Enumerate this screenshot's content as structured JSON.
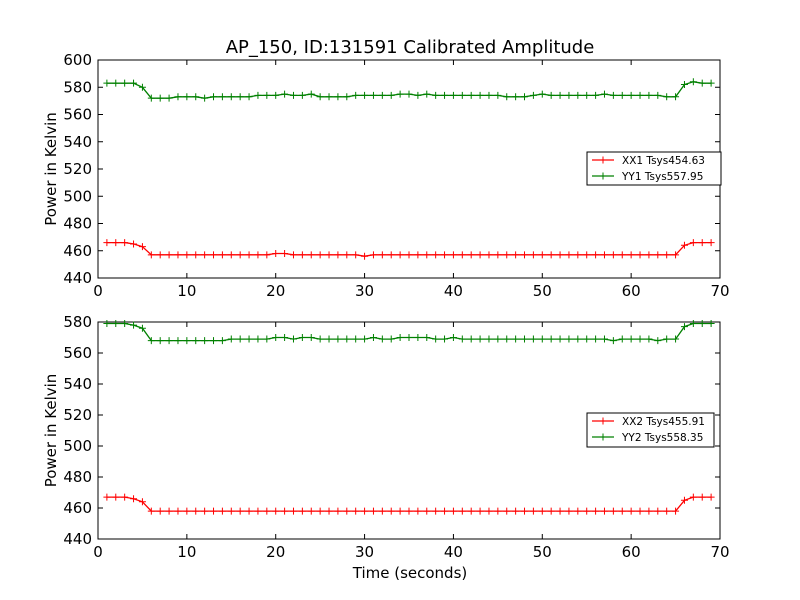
{
  "figure": {
    "title": "AP_150, ID:131591 Calibrated Amplitude",
    "xlabel": "Time (seconds)"
  },
  "chart_data": [
    {
      "type": "line",
      "title": "AP_150, ID:131591 Calibrated Amplitude",
      "xlabel": "",
      "ylabel": "Power in Kelvin",
      "xlim": [
        0,
        70
      ],
      "ylim": [
        440,
        600
      ],
      "xticks": [
        0,
        10,
        20,
        30,
        40,
        50,
        60,
        70
      ],
      "yticks": [
        440,
        460,
        480,
        500,
        520,
        540,
        560,
        580,
        600
      ],
      "grid": false,
      "legend_position": "center-right",
      "x": [
        1,
        2,
        3,
        4,
        5,
        6,
        7,
        8,
        9,
        10,
        11,
        12,
        13,
        14,
        15,
        16,
        17,
        18,
        19,
        20,
        21,
        22,
        23,
        24,
        25,
        26,
        27,
        28,
        29,
        30,
        31,
        32,
        33,
        34,
        35,
        36,
        37,
        38,
        39,
        40,
        41,
        42,
        43,
        44,
        45,
        46,
        47,
        48,
        49,
        50,
        51,
        52,
        53,
        54,
        55,
        56,
        57,
        58,
        59,
        60,
        61,
        62,
        63,
        64,
        65,
        66,
        67,
        68,
        69
      ],
      "series": [
        {
          "name": "XX1 Tsys454.63",
          "color": "#ff0000",
          "values": [
            466,
            466,
            466,
            465,
            463,
            457,
            457,
            457,
            457,
            457,
            457,
            457,
            457,
            457,
            457,
            457,
            457,
            457,
            457,
            458,
            458,
            457,
            457,
            457,
            457,
            457,
            457,
            457,
            457,
            456,
            457,
            457,
            457,
            457,
            457,
            457,
            457,
            457,
            457,
            457,
            457,
            457,
            457,
            457,
            457,
            457,
            457,
            457,
            457,
            457,
            457,
            457,
            457,
            457,
            457,
            457,
            457,
            457,
            457,
            457,
            457,
            457,
            457,
            457,
            457,
            464,
            466,
            466,
            466
          ]
        },
        {
          "name": "YY1 Tsys557.95",
          "color": "#008000",
          "values": [
            583,
            583,
            583,
            583,
            580,
            572,
            572,
            572,
            573,
            573,
            573,
            572,
            573,
            573,
            573,
            573,
            573,
            574,
            574,
            574,
            575,
            574,
            574,
            575,
            573,
            573,
            573,
            573,
            574,
            574,
            574,
            574,
            574,
            575,
            575,
            574,
            575,
            574,
            574,
            574,
            574,
            574,
            574,
            574,
            574,
            573,
            573,
            573,
            574,
            575,
            574,
            574,
            574,
            574,
            574,
            574,
            575,
            574,
            574,
            574,
            574,
            574,
            574,
            573,
            573,
            582,
            584,
            583,
            583
          ]
        }
      ]
    },
    {
      "type": "line",
      "title": "",
      "xlabel": "Time (seconds)",
      "ylabel": "Power in Kelvin",
      "xlim": [
        0,
        70
      ],
      "ylim": [
        440,
        580
      ],
      "xticks": [
        0,
        10,
        20,
        30,
        40,
        50,
        60,
        70
      ],
      "yticks": [
        440,
        460,
        480,
        500,
        520,
        540,
        560,
        580
      ],
      "grid": false,
      "legend_position": "center-right",
      "x": [
        1,
        2,
        3,
        4,
        5,
        6,
        7,
        8,
        9,
        10,
        11,
        12,
        13,
        14,
        15,
        16,
        17,
        18,
        19,
        20,
        21,
        22,
        23,
        24,
        25,
        26,
        27,
        28,
        29,
        30,
        31,
        32,
        33,
        34,
        35,
        36,
        37,
        38,
        39,
        40,
        41,
        42,
        43,
        44,
        45,
        46,
        47,
        48,
        49,
        50,
        51,
        52,
        53,
        54,
        55,
        56,
        57,
        58,
        59,
        60,
        61,
        62,
        63,
        64,
        65,
        66,
        67,
        68,
        69
      ],
      "series": [
        {
          "name": "XX2 Tsys455.91",
          "color": "#ff0000",
          "values": [
            467,
            467,
            467,
            466,
            464,
            458,
            458,
            458,
            458,
            458,
            458,
            458,
            458,
            458,
            458,
            458,
            458,
            458,
            458,
            458,
            458,
            458,
            458,
            458,
            458,
            458,
            458,
            458,
            458,
            458,
            458,
            458,
            458,
            458,
            458,
            458,
            458,
            458,
            458,
            458,
            458,
            458,
            458,
            458,
            458,
            458,
            458,
            458,
            458,
            458,
            458,
            458,
            458,
            458,
            458,
            458,
            458,
            458,
            458,
            458,
            458,
            458,
            458,
            458,
            458,
            465,
            467,
            467,
            467
          ]
        },
        {
          "name": "YY2 Tsys558.35",
          "color": "#008000",
          "values": [
            579,
            579,
            579,
            578,
            576,
            568,
            568,
            568,
            568,
            568,
            568,
            568,
            568,
            568,
            569,
            569,
            569,
            569,
            569,
            570,
            570,
            569,
            570,
            570,
            569,
            569,
            569,
            569,
            569,
            569,
            570,
            569,
            569,
            570,
            570,
            570,
            570,
            569,
            569,
            570,
            569,
            569,
            569,
            569,
            569,
            569,
            569,
            569,
            569,
            569,
            569,
            569,
            569,
            569,
            569,
            569,
            569,
            568,
            569,
            569,
            569,
            569,
            568,
            569,
            569,
            577,
            579,
            579,
            579
          ]
        }
      ]
    }
  ]
}
